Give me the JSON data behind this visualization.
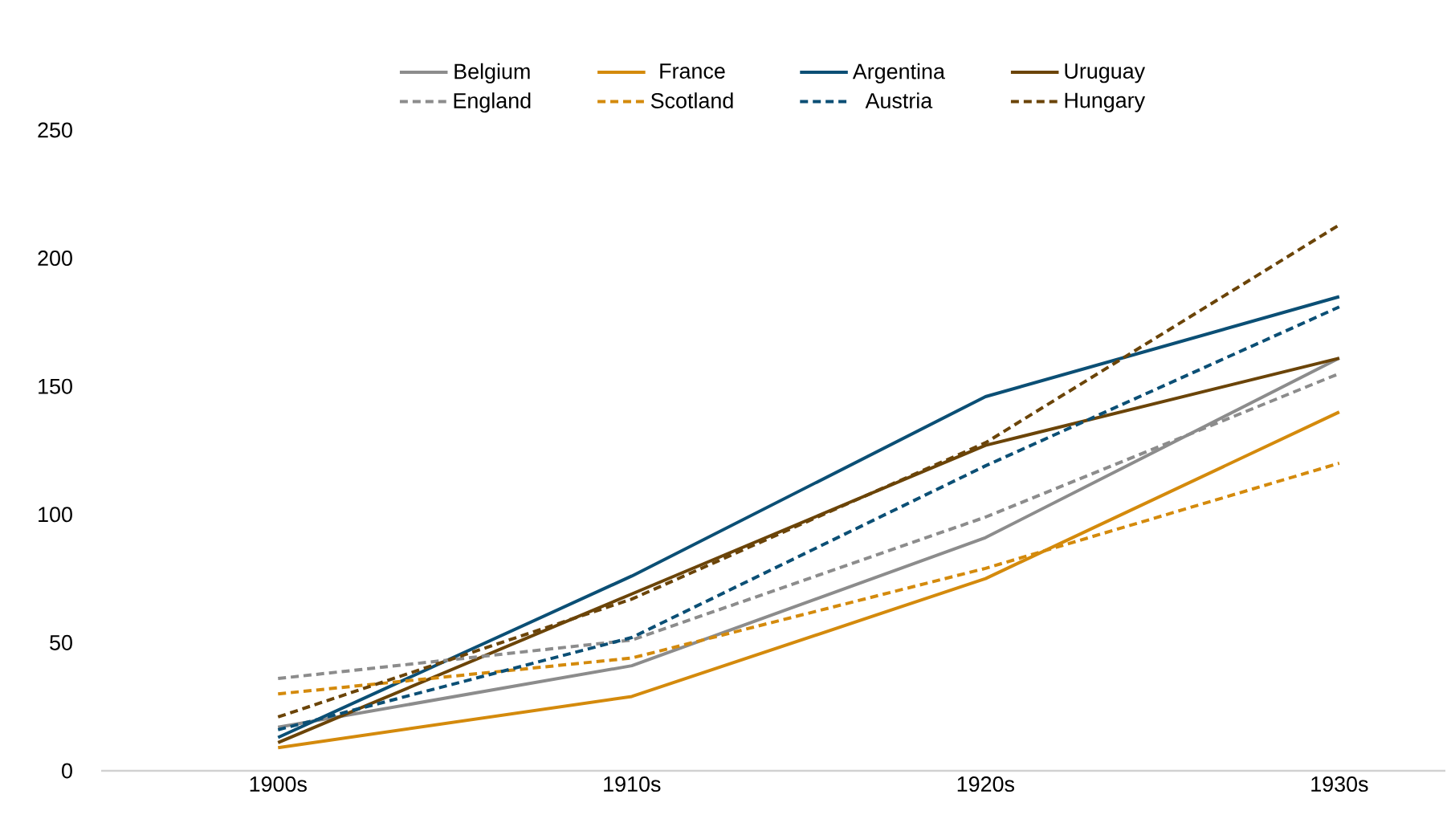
{
  "chart_data": {
    "type": "line",
    "categories": [
      "1900s",
      "1910s",
      "1920s",
      "1930s"
    ],
    "ylim": [
      0,
      250
    ],
    "yticks": [
      0,
      50,
      100,
      150,
      200,
      250
    ],
    "grid": false,
    "legend": "top",
    "marker": "none",
    "series": [
      {
        "name": "Belgium",
        "color": "#8c8c8c",
        "line_style": "solid",
        "values": [
          17,
          41,
          91,
          161
        ]
      },
      {
        "name": "France",
        "color": "#d48a0c",
        "line_style": "solid",
        "values": [
          9,
          29,
          75,
          140
        ]
      },
      {
        "name": "Argentina",
        "color": "#0b4f75",
        "line_style": "solid",
        "values": [
          13,
          76,
          146,
          185
        ]
      },
      {
        "name": "Uruguay",
        "color": "#6b4408",
        "line_style": "solid",
        "values": [
          11,
          69,
          127,
          161
        ]
      },
      {
        "name": "England",
        "color": "#8c8c8c",
        "line_style": "dashed",
        "values": [
          36,
          51,
          99,
          155
        ]
      },
      {
        "name": "Scotland",
        "color": "#d48a0c",
        "line_style": "dashed",
        "values": [
          30,
          44,
          79,
          120
        ]
      },
      {
        "name": "Austria",
        "color": "#0b4f75",
        "line_style": "dashed",
        "values": [
          16,
          52,
          119,
          181
        ]
      },
      {
        "name": "Hungary",
        "color": "#6b4408",
        "line_style": "dashed",
        "values": [
          21,
          67,
          128,
          213
        ]
      }
    ]
  }
}
